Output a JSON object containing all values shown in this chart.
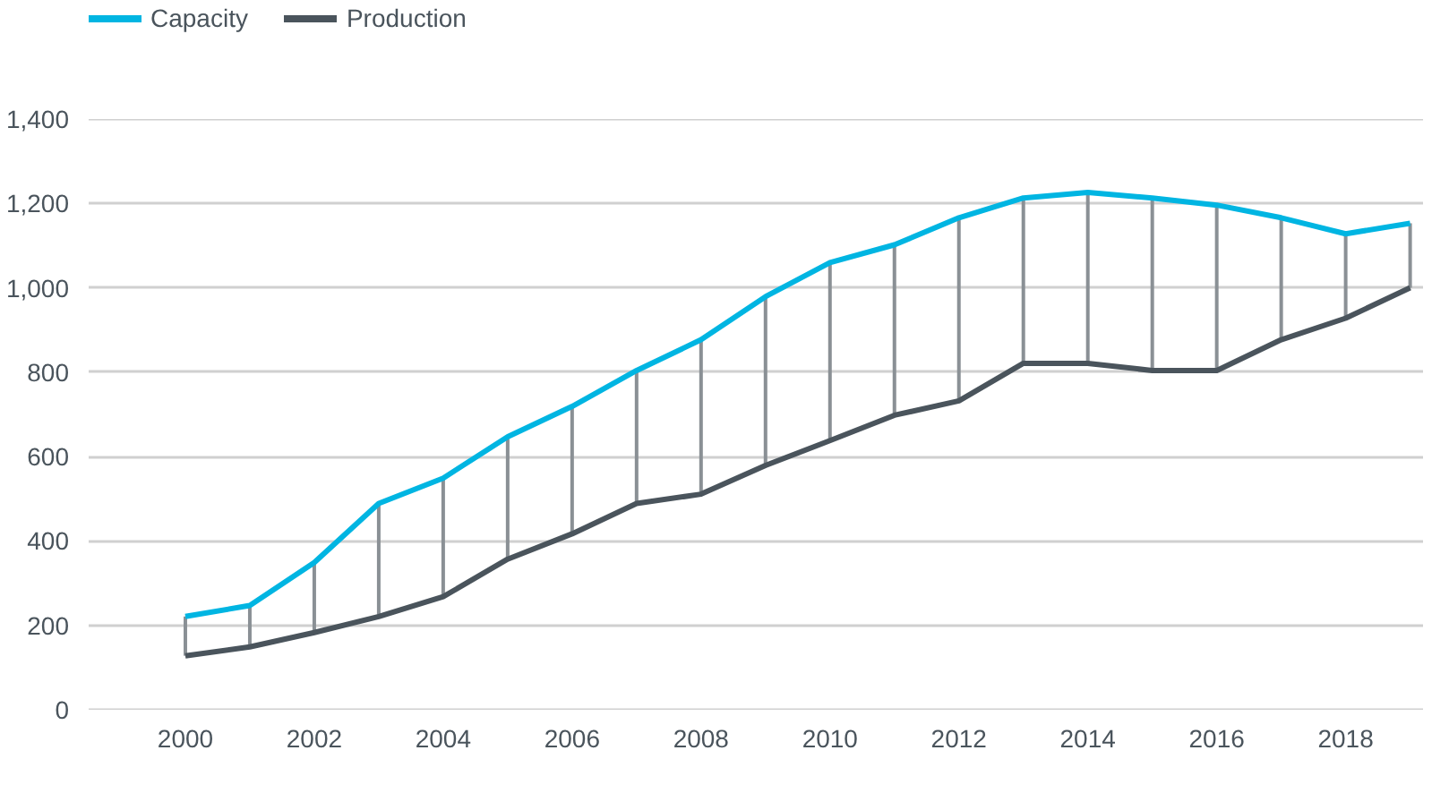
{
  "chart_data": {
    "type": "line",
    "x": [
      2000,
      2001,
      2002,
      2003,
      2004,
      2005,
      2006,
      2007,
      2008,
      2009,
      2010,
      2011,
      2012,
      2013,
      2014,
      2015,
      2016,
      2017,
      2018,
      2019
    ],
    "series": [
      {
        "name": "Capacity",
        "color": "#00b5e2",
        "values": [
          221,
          247,
          349,
          489,
          549,
          647,
          719,
          804,
          877,
          979,
          1060,
          1102,
          1166,
          1213,
          1226,
          1213,
          1196,
          1166,
          1128,
          1153
        ],
        "errors": [
          [
            128,
            221
          ],
          [
            149,
            247
          ],
          [
            183,
            349
          ],
          [
            221,
            489
          ],
          [
            268,
            549
          ],
          [
            357,
            647
          ],
          [
            417,
            719
          ],
          [
            489,
            804
          ],
          [
            511,
            877
          ],
          [
            579,
            979
          ],
          [
            638,
            1060
          ],
          [
            698,
            1102
          ],
          [
            732,
            1166
          ],
          [
            821,
            1213
          ],
          [
            821,
            1226
          ],
          [
            804,
            1213
          ],
          [
            804,
            1196
          ],
          [
            877,
            1166
          ],
          [
            928,
            1128
          ],
          [
            1000,
            1153
          ]
        ]
      },
      {
        "name": "Production",
        "color": "#4a545c",
        "values": [
          128,
          149,
          183,
          221,
          268,
          357,
          417,
          489,
          511,
          579,
          638,
          698,
          732,
          821,
          821,
          804,
          804,
          877,
          928,
          1000
        ]
      }
    ],
    "xlim": [
      1998.5,
      2019.2
    ],
    "xticks": [
      2000,
      2002,
      2004,
      2006,
      2008,
      2010,
      2012,
      2014,
      2016,
      2018
    ],
    "ylim": [
      0,
      1400
    ],
    "yticks": [
      0,
      200,
      400,
      600,
      800,
      {
        "value": 1000,
        "label": "1,000"
      },
      {
        "value": 1200,
        "label": "1,200"
      },
      {
        "value": 1400,
        "label": "1,400"
      }
    ],
    "grid": "y",
    "legend": "top left",
    "marker": "none",
    "line_style": "solid"
  }
}
